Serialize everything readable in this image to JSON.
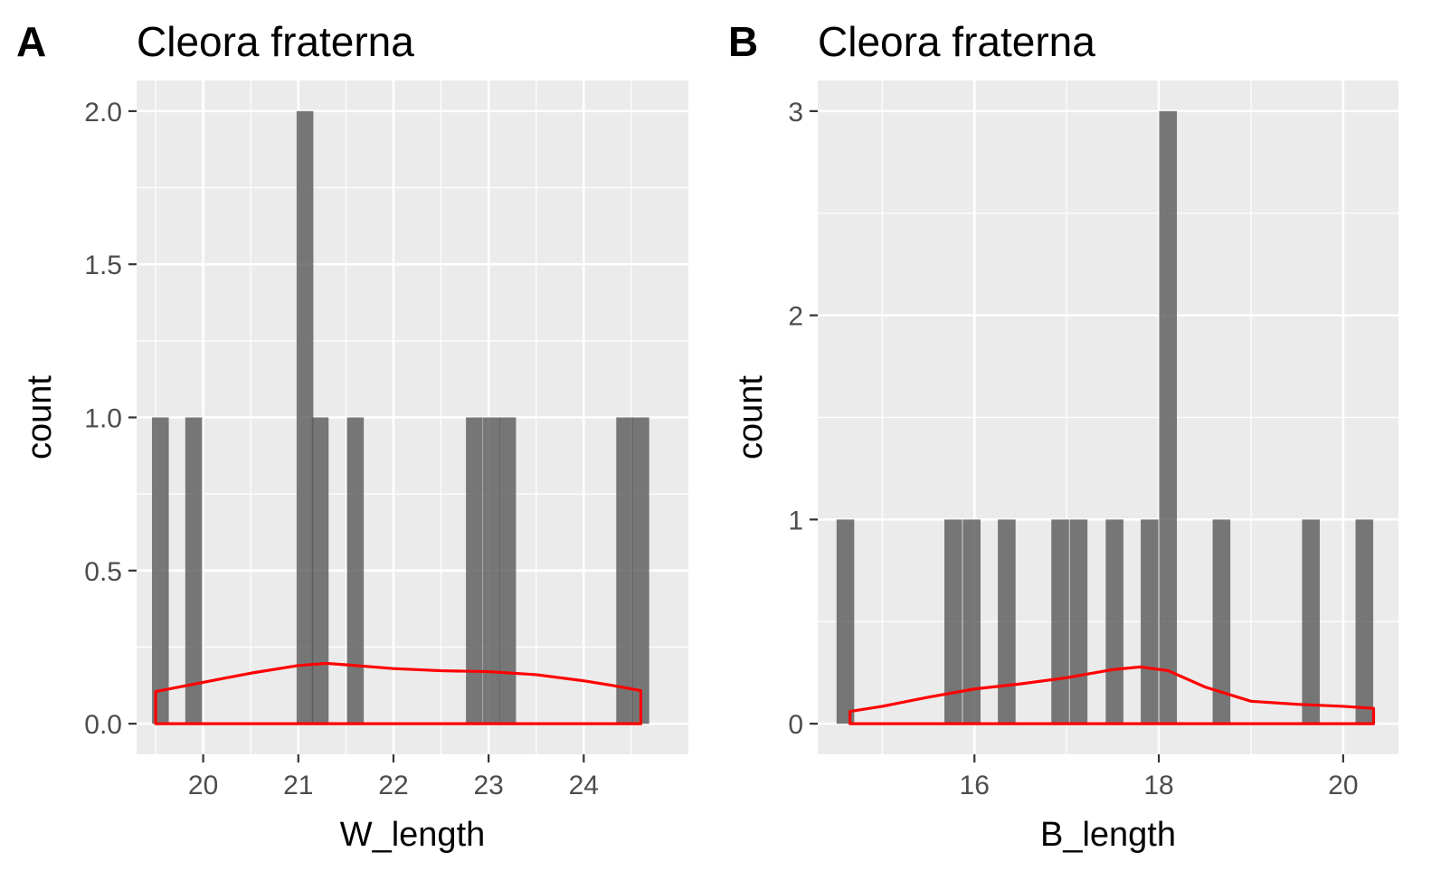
{
  "chart_data": [
    {
      "type": "bar",
      "panel_label": "A",
      "title": "Cleora fraterna",
      "xlabel": "W_length",
      "ylabel": "count",
      "xlim": [
        19.3,
        25.1
      ],
      "ylim": [
        -0.1,
        2.1
      ],
      "x_ticks": [
        20,
        21,
        22,
        23,
        24
      ],
      "x_tick_labels": [
        "20",
        "21",
        "22",
        "23",
        "24"
      ],
      "y_ticks": [
        0,
        0.5,
        1,
        1.5,
        2
      ],
      "y_tick_labels": [
        "0.0",
        "0.5",
        "1.0",
        "1.5",
        "2.0"
      ],
      "bin_width": 0.176,
      "bars": [
        {
          "x": 19.55,
          "count": 1
        },
        {
          "x": 19.9,
          "count": 1
        },
        {
          "x": 21.07,
          "count": 2
        },
        {
          "x": 21.23,
          "count": 1
        },
        {
          "x": 21.6,
          "count": 1
        },
        {
          "x": 22.85,
          "count": 1
        },
        {
          "x": 23.03,
          "count": 1
        },
        {
          "x": 23.2,
          "count": 1
        },
        {
          "x": 24.43,
          "count": 1
        },
        {
          "x": 24.6,
          "count": 1
        }
      ],
      "bar_color": "#595959",
      "density": {
        "color": "#ff0000",
        "x": [
          19.5,
          20.0,
          20.5,
          21.0,
          21.3,
          21.6,
          22.0,
          22.5,
          23.0,
          23.5,
          24.0,
          24.3,
          24.6
        ],
        "y": [
          0.105,
          0.135,
          0.165,
          0.19,
          0.197,
          0.19,
          0.18,
          0.173,
          0.17,
          0.16,
          0.14,
          0.125,
          0.108
        ]
      }
    },
    {
      "type": "bar",
      "panel_label": "B",
      "title": "Cleora fraterna",
      "xlabel": "B_length",
      "ylabel": "count",
      "xlim": [
        14.3,
        20.6
      ],
      "ylim": [
        -0.15,
        3.15
      ],
      "x_ticks": [
        16,
        18,
        20
      ],
      "x_tick_labels": [
        "16",
        "18",
        "20"
      ],
      "y_ticks": [
        0,
        1,
        2,
        3
      ],
      "y_tick_labels": [
        "0",
        "1",
        "2",
        "3"
      ],
      "bin_width": 0.192,
      "bars": [
        {
          "x": 14.6,
          "count": 1
        },
        {
          "x": 15.77,
          "count": 1
        },
        {
          "x": 15.97,
          "count": 1
        },
        {
          "x": 16.35,
          "count": 1
        },
        {
          "x": 16.93,
          "count": 1
        },
        {
          "x": 17.13,
          "count": 1
        },
        {
          "x": 17.52,
          "count": 1
        },
        {
          "x": 17.9,
          "count": 1
        },
        {
          "x": 18.1,
          "count": 3
        },
        {
          "x": 18.68,
          "count": 1
        },
        {
          "x": 19.65,
          "count": 1
        },
        {
          "x": 20.23,
          "count": 1
        }
      ],
      "bar_color": "#595959",
      "density": {
        "color": "#ff0000",
        "x": [
          14.65,
          15.0,
          15.5,
          16.0,
          16.5,
          17.0,
          17.5,
          17.8,
          18.1,
          18.5,
          19.0,
          19.5,
          20.0,
          20.33
        ],
        "y": [
          0.06,
          0.085,
          0.13,
          0.17,
          0.195,
          0.225,
          0.265,
          0.278,
          0.26,
          0.18,
          0.11,
          0.095,
          0.085,
          0.075
        ]
      }
    }
  ]
}
